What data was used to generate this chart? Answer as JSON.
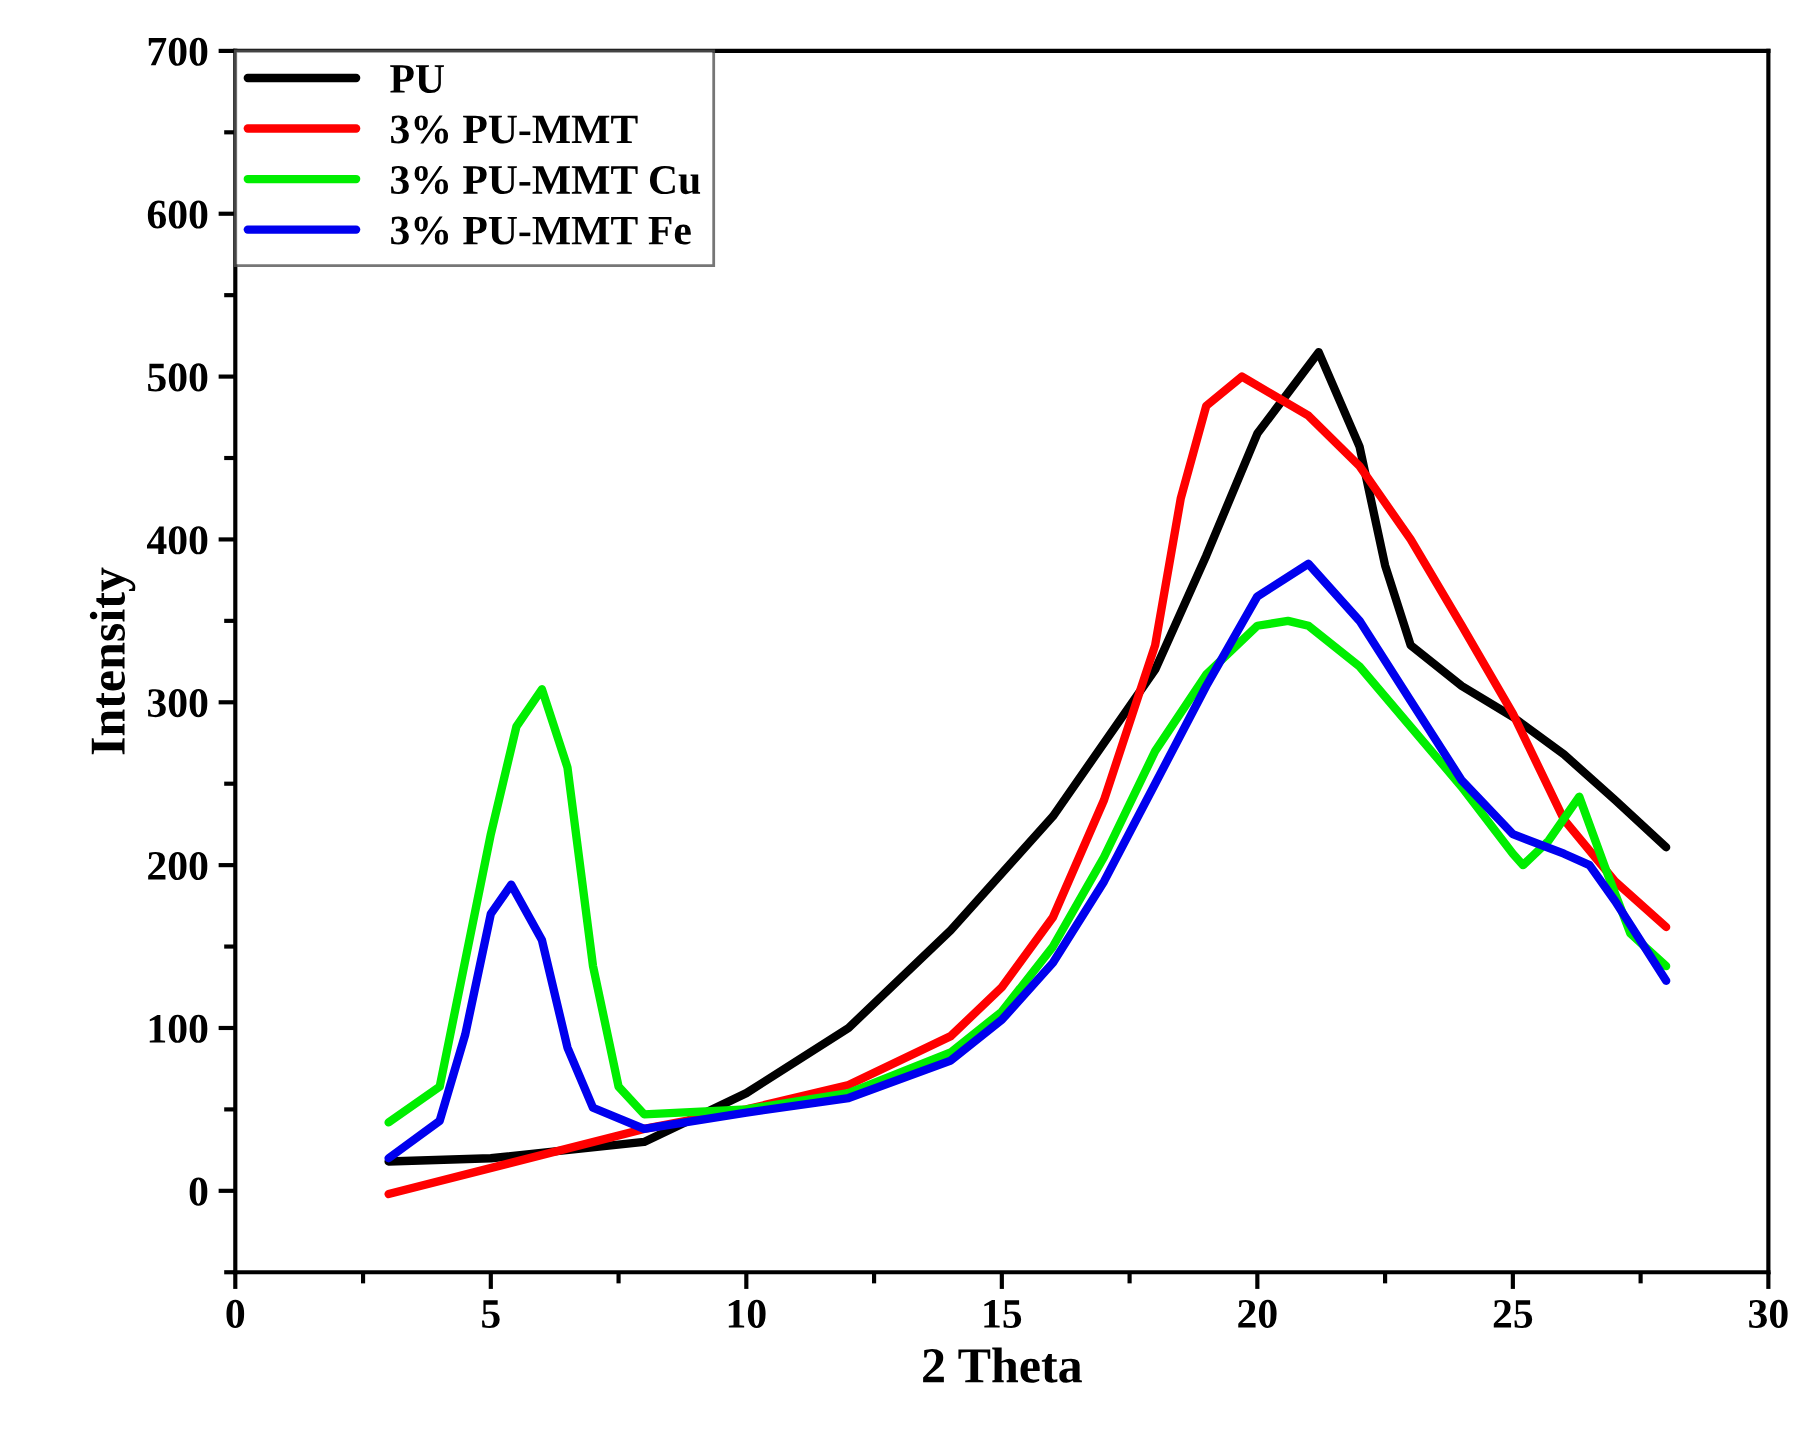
{
  "chart_data": {
    "type": "line",
    "xlabel": "2 Theta",
    "ylabel": "Intensity",
    "xlim": [
      0,
      30
    ],
    "xticks": [
      0,
      5,
      10,
      15,
      20,
      25,
      30
    ],
    "ylim": [
      -50,
      700
    ],
    "yticks": [
      0,
      100,
      200,
      300,
      400,
      500,
      600,
      700
    ],
    "grid": false,
    "legend": "top left",
    "marker": "none",
    "line_style": "solid",
    "series": [
      {
        "name": "PU",
        "color": "#000000",
        "x": [
          3,
          5,
          8,
          10,
          12,
          14,
          16,
          18,
          19,
          20,
          21.2,
          22,
          22.5,
          23,
          24,
          25,
          26,
          27,
          28
        ],
        "values": [
          18,
          20,
          30,
          60,
          100,
          160,
          230,
          320,
          390,
          465,
          515,
          457,
          384,
          335,
          310,
          291,
          268,
          240,
          211
        ]
      },
      {
        "name": "3% PU-MMT",
        "color": "#ff0000",
        "x": [
          3,
          8,
          10,
          12,
          14,
          15,
          16,
          17,
          18,
          18.5,
          19,
          19.7,
          21,
          22,
          23,
          24,
          25,
          26,
          27,
          28
        ],
        "values": [
          -2,
          38,
          50,
          65,
          95,
          125,
          168,
          240,
          335,
          425,
          482,
          500,
          476,
          445,
          400,
          347,
          293,
          228,
          190,
          162
        ]
      },
      {
        "name": "3% PU-MMT Cu",
        "color": "#00ee00",
        "x": [
          3,
          4,
          5,
          5.5,
          6,
          6.5,
          7,
          7.5,
          8,
          10,
          12,
          14,
          15,
          16,
          17,
          18,
          19,
          20,
          20.6,
          21,
          22,
          23,
          24,
          25,
          25.2,
          25.7,
          26.3,
          26.8,
          27.3,
          28
        ],
        "values": [
          42,
          64,
          219,
          285,
          308,
          260,
          138,
          64,
          47,
          50,
          60,
          85,
          110,
          150,
          205,
          270,
          317,
          347,
          350,
          347,
          322,
          285,
          248,
          207,
          200,
          215,
          242,
          199,
          158,
          138
        ]
      },
      {
        "name": "3% PU-MMT Fe",
        "color": "#0000ee",
        "x": [
          3,
          4,
          4.5,
          5,
          5.4,
          6,
          6.5,
          7,
          8,
          10,
          12,
          14,
          15,
          16,
          17,
          18,
          19,
          20,
          21,
          22,
          23,
          24,
          25,
          26,
          26.5,
          27,
          28
        ],
        "values": [
          20,
          43,
          96,
          170,
          188,
          154,
          88,
          51,
          38,
          48,
          57,
          80,
          105,
          140,
          190,
          250,
          310,
          365,
          385,
          350,
          301,
          252,
          219,
          207,
          200,
          178,
          129
        ]
      }
    ]
  }
}
